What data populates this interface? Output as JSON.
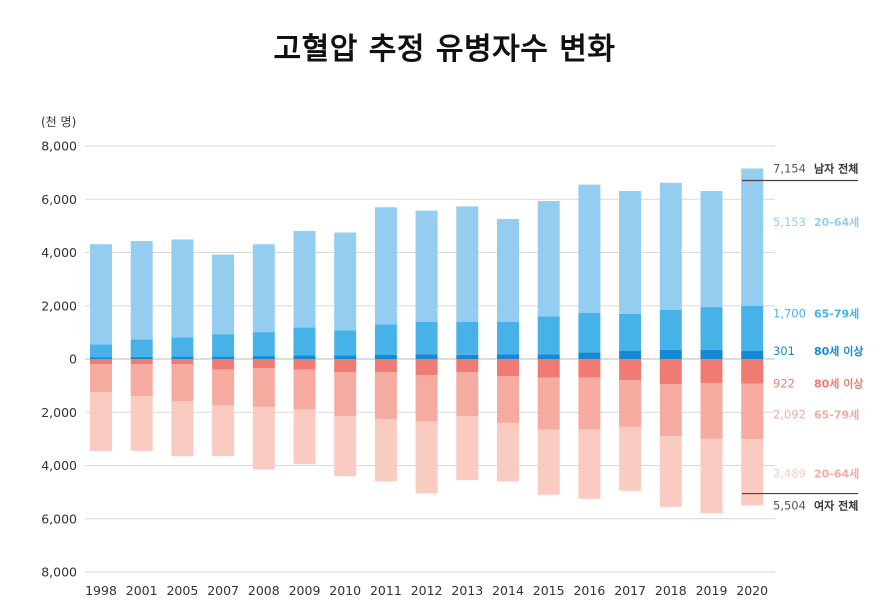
{
  "chart_data": {
    "type": "bar",
    "title": "고혈압 추정 유병자수 변화",
    "unit_label": "(천 명)",
    "categories": [
      "1998",
      "2001",
      "2005",
      "2007",
      "2008",
      "2009",
      "2010",
      "2011",
      "2012",
      "2013",
      "2014",
      "2015",
      "2016",
      "2017",
      "2018",
      "2019",
      "2020"
    ],
    "y_tick_labels": [
      "8,000",
      "6,000",
      "4,000",
      "2,000",
      "0",
      "2,000",
      "4,000",
      "6,000",
      "8,000"
    ],
    "ylim": [
      -8000,
      8000
    ],
    "grid": "horizontal",
    "stacked": true,
    "male": {
      "series": [
        {
          "name": "80세 이상",
          "color": "#1689d6",
          "values": [
            70,
            80,
            90,
            100,
            110,
            140,
            130,
            150,
            180,
            160,
            170,
            180,
            250,
            300,
            350,
            350,
            301
          ]
        },
        {
          "name": "65-79세",
          "color": "#47b2e8",
          "values": [
            480,
            650,
            720,
            820,
            900,
            1050,
            950,
            1150,
            1220,
            1240,
            1220,
            1420,
            1490,
            1400,
            1500,
            1600,
            1700
          ]
        },
        {
          "name": "20-64세",
          "color": "#94cdf0",
          "values": [
            3760,
            3700,
            3680,
            3000,
            3300,
            3620,
            3670,
            4400,
            4170,
            4330,
            3870,
            4330,
            4810,
            4610,
            4770,
            4360,
            5153
          ]
        }
      ]
    },
    "female": {
      "series": [
        {
          "name": "80세 이상",
          "color": "#f07b73",
          "values": [
            200,
            200,
            200,
            400,
            350,
            400,
            500,
            500,
            600,
            500,
            650,
            700,
            700,
            800,
            950,
            900,
            922
          ]
        },
        {
          "name": "65-79세",
          "color": "#f5ab9f",
          "values": [
            1050,
            1200,
            1400,
            1350,
            1450,
            1500,
            1650,
            1750,
            1750,
            1650,
            1750,
            1950,
            1950,
            1750,
            1950,
            2100,
            2092
          ]
        },
        {
          "name": "20-64세",
          "color": "#f9cbc1",
          "values": [
            2200,
            2050,
            2050,
            1900,
            2350,
            2050,
            2250,
            2350,
            2700,
            2400,
            2200,
            2450,
            2600,
            2400,
            2650,
            2800,
            2489
          ]
        }
      ]
    },
    "annotations": [
      {
        "value": "7,154",
        "label": "남자 전체",
        "y": 7154,
        "value_color": "#555555",
        "label_color": "#333333",
        "line": true
      },
      {
        "value": "5,153",
        "label": "20-64세",
        "y": 5153,
        "value_color": "#94cdf0",
        "label_color": "#94cdf0",
        "line": false
      },
      {
        "value": "1,700",
        "label": "65-79세",
        "y": 1700,
        "value_color": "#47b2e8",
        "label_color": "#47b2e8",
        "line": false
      },
      {
        "value": "301",
        "label": "80세 이상",
        "y": 301,
        "value_color": "#1689d6",
        "label_color": "#1689d6",
        "line": false
      },
      {
        "value": "922",
        "label": "80세 이상",
        "y": -922,
        "value_color": "#f07b73",
        "label_color": "#f07b73",
        "line": false
      },
      {
        "value": "2,092",
        "label": "65-79세",
        "y": -2092,
        "value_color": "#f5ab9f",
        "label_color": "#f5ab9f",
        "line": false
      },
      {
        "value": "2,489",
        "label": "20-64세",
        "y": -4300,
        "value_color": "#f9cbc1",
        "label_color": "#f5ab9f",
        "line": false
      },
      {
        "value": "5,504",
        "label": "여자 전체",
        "y": -5504,
        "value_color": "#555555",
        "label_color": "#333333",
        "line": true
      }
    ]
  }
}
